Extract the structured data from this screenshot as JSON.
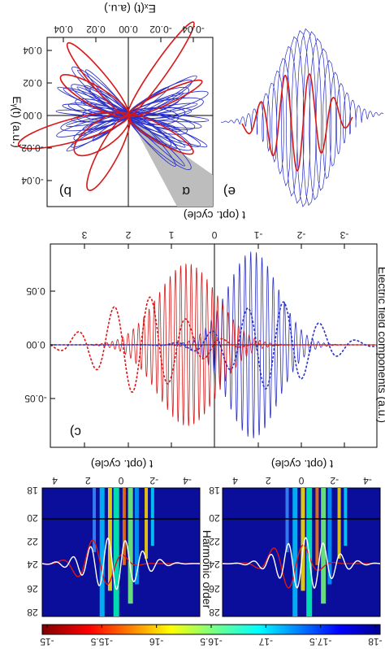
{
  "colors": {
    "red": "#d81818",
    "blue": "#2a30c8",
    "gray": "#bdbdbd",
    "white_trace": "#ffffff",
    "map_bg": "#0a0e9a"
  },
  "panel_letters": {
    "top_left": "b)",
    "top_right": "e)",
    "middle": "c)",
    "alpha": "α"
  },
  "panel_b": {
    "top_axis_label": "Eₓ(t) (a.u.)",
    "left_axis_label": "Eᵧ(t) (a.u.)",
    "x_ticks": [
      "-0.04",
      "-0.02",
      "0.00",
      "0.02",
      "0.04"
    ],
    "y_ticks": [
      "-0.04",
      "-0.02",
      "0.00",
      "0.02",
      "0.04"
    ]
  },
  "panel_c": {
    "x_label": "t (opt. cycle)",
    "y_label": "Electric field components (a.u.)",
    "x_ticks": [
      "-3",
      "-2",
      "-1",
      "0",
      "1",
      "2",
      "3"
    ],
    "y_ticks": [
      "-0.05",
      "0.00",
      "0.05"
    ]
  },
  "bottom_maps": {
    "x_label": "t (opt. cycle)",
    "x_ticks": [
      "-4",
      "-2",
      "0",
      "2",
      "4"
    ],
    "y_label": "Harmonic order",
    "y_ticks": [
      "18",
      "20",
      "22",
      "24",
      "26",
      "28"
    ]
  },
  "colorbar": {
    "ticks": [
      "-18",
      "-17.5",
      "-17",
      "-16.5",
      "-16",
      "-15.5",
      "-15"
    ]
  }
}
